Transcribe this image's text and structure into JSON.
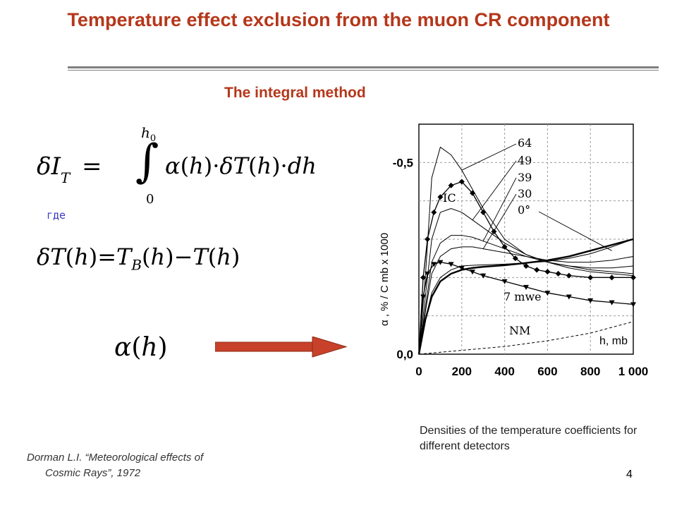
{
  "slide": {
    "title": "Temperature effect exclusion from the muon CR component",
    "subtitle": "The integral method",
    "where_label": "где",
    "caption": "Densities of the temperature coefficients for different detectors",
    "reference_line1": "Dorman L.I. “Meteorological effects of",
    "reference_line2": "Cosmic Rays”, 1972",
    "page_number": "4"
  },
  "formulas": {
    "integral_upper_limit": "h",
    "integral_upper_sub": "0",
    "integral_lower_limit": "0"
  },
  "colors": {
    "title": "#b5371b",
    "arrow": "#c8412a",
    "where": "#3a3ac0"
  },
  "chart_data": {
    "type": "line",
    "xlabel": "h, mb",
    "ylabel": "α , % / C mb x 1000",
    "x_ticks": [
      "0",
      "200",
      "400",
      "600",
      "800",
      "1 000"
    ],
    "y_ticks": [
      "0,0",
      "-0,5"
    ],
    "xlim": [
      0,
      1000
    ],
    "ylim": [
      0.0,
      -0.6
    ],
    "grid": true,
    "annotations": [
      "64",
      "49",
      "39",
      "30",
      "0°",
      "IC",
      "7 mwe",
      "NM"
    ],
    "series": [
      {
        "name": "64",
        "x": [
          0,
          30,
          60,
          100,
          150,
          200,
          250,
          300,
          400,
          500,
          600,
          700,
          800,
          900,
          1000
        ],
        "y": [
          0,
          -0.2,
          -0.46,
          -0.54,
          -0.52,
          -0.48,
          -0.43,
          -0.38,
          -0.3,
          -0.26,
          -0.24,
          -0.23,
          -0.22,
          -0.215,
          -0.21
        ]
      },
      {
        "name": "49",
        "x": [
          0,
          30,
          60,
          100,
          150,
          200,
          250,
          300,
          400,
          500,
          600,
          700,
          800,
          900,
          1000
        ],
        "y": [
          0,
          -0.15,
          -0.3,
          -0.37,
          -0.38,
          -0.37,
          -0.35,
          -0.33,
          -0.29,
          -0.26,
          -0.24,
          -0.225,
          -0.215,
          -0.21,
          -0.205
        ]
      },
      {
        "name": "39",
        "x": [
          0,
          30,
          60,
          100,
          150,
          200,
          250,
          300,
          400,
          500,
          600,
          700,
          800,
          900,
          1000
        ],
        "y": [
          0,
          -0.12,
          -0.24,
          -0.29,
          -0.31,
          -0.31,
          -0.305,
          -0.295,
          -0.275,
          -0.255,
          -0.24,
          -0.23,
          -0.225,
          -0.225,
          -0.23
        ]
      },
      {
        "name": "30",
        "x": [
          0,
          30,
          60,
          100,
          150,
          200,
          250,
          300,
          400,
          500,
          600,
          700,
          800,
          900,
          1000
        ],
        "y": [
          0,
          -0.11,
          -0.21,
          -0.255,
          -0.275,
          -0.28,
          -0.28,
          -0.275,
          -0.265,
          -0.255,
          -0.245,
          -0.24,
          -0.24,
          -0.245,
          -0.255
        ]
      },
      {
        "name": "0°",
        "x": [
          0,
          30,
          60,
          100,
          150,
          200,
          250,
          300,
          400,
          500,
          600,
          700,
          800,
          900,
          1000
        ],
        "y": [
          0,
          -0.09,
          -0.16,
          -0.2,
          -0.22,
          -0.23,
          -0.232,
          -0.233,
          -0.235,
          -0.238,
          -0.242,
          -0.25,
          -0.262,
          -0.28,
          -0.3
        ]
      },
      {
        "name": "IC",
        "x": [
          0,
          20,
          40,
          70,
          100,
          150,
          200,
          250,
          300,
          350,
          400,
          450,
          500,
          550,
          600,
          650,
          700,
          800,
          900,
          1000
        ],
        "y": [
          0,
          -0.2,
          -0.3,
          -0.37,
          -0.41,
          -0.44,
          -0.45,
          -0.42,
          -0.37,
          -0.32,
          -0.28,
          -0.25,
          -0.23,
          -0.22,
          -0.215,
          -0.21,
          -0.205,
          -0.2,
          -0.2,
          -0.2
        ]
      },
      {
        "name": "7 mwe",
        "x": [
          0,
          20,
          40,
          70,
          100,
          150,
          200,
          250,
          300,
          400,
          500,
          600,
          700,
          800,
          900,
          1000
        ],
        "y": [
          0,
          -0.15,
          -0.21,
          -0.235,
          -0.24,
          -0.235,
          -0.225,
          -0.215,
          -0.205,
          -0.19,
          -0.175,
          -0.16,
          -0.15,
          -0.14,
          -0.135,
          -0.13
        ]
      },
      {
        "name": "",
        "x": [
          0,
          30,
          60,
          100,
          150,
          200,
          250,
          300,
          400,
          500,
          600,
          700,
          800,
          900,
          1000
        ],
        "y": [
          0,
          -0.09,
          -0.15,
          -0.19,
          -0.21,
          -0.22,
          -0.225,
          -0.228,
          -0.232,
          -0.238,
          -0.245,
          -0.255,
          -0.27,
          -0.285,
          -0.3
        ]
      },
      {
        "name": "NM",
        "x": [
          0,
          200,
          400,
          600,
          800,
          1000
        ],
        "y": [
          0,
          -0.01,
          -0.02,
          -0.035,
          -0.055,
          -0.085
        ]
      }
    ]
  }
}
